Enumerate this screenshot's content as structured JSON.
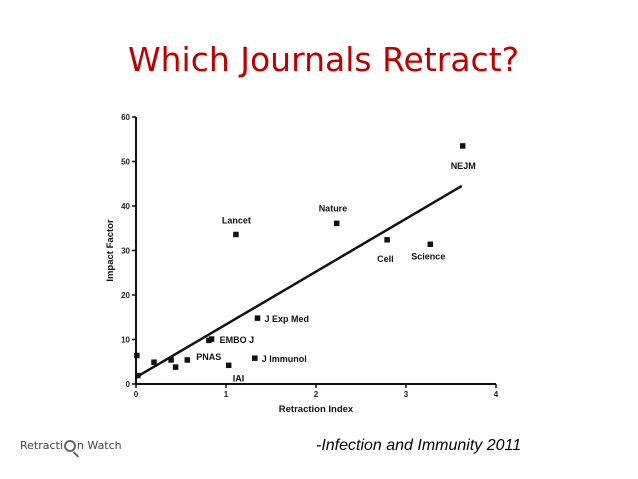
{
  "slide": {
    "title": "Which Journals Retract?",
    "source": "-Infection and Immunity 2011",
    "logo_left": "Retracti",
    "logo_right": "n Watch"
  },
  "chart_data": {
    "type": "scatter",
    "xlabel": "Retraction Index",
    "ylabel": "Impact Factor",
    "xlim": [
      0,
      4
    ],
    "ylim": [
      0,
      60
    ],
    "xticks": [
      0,
      1,
      2,
      3,
      4
    ],
    "yticks": [
      0,
      10,
      20,
      30,
      40,
      50,
      60
    ],
    "grid": false,
    "trendline": {
      "x": [
        0,
        3.62
      ],
      "y": [
        1.5,
        44.5
      ]
    },
    "points": [
      {
        "label": "NEJM",
        "x": 3.63,
        "y": 53.5
      },
      {
        "label": "Nature",
        "x": 2.23,
        "y": 36.1
      },
      {
        "label": "Lancet",
        "x": 1.11,
        "y": 33.6
      },
      {
        "label": "Cell",
        "x": 2.79,
        "y": 32.4
      },
      {
        "label": "Science",
        "x": 3.27,
        "y": 31.4
      },
      {
        "label": "J Exp Med",
        "x": 1.35,
        "y": 14.8
      },
      {
        "label": "EMBO J",
        "x": 0.84,
        "y": 10.1
      },
      {
        "label": "PNAS",
        "x": 0.57,
        "y": 5.4
      },
      {
        "label": "J Immunol",
        "x": 1.32,
        "y": 5.8
      },
      {
        "label": "IAI",
        "x": 1.03,
        "y": 4.2
      },
      {
        "label": "",
        "x": 0.01,
        "y": 6.4
      },
      {
        "label": "",
        "x": 0.02,
        "y": 1.9
      },
      {
        "label": "",
        "x": 0.2,
        "y": 4.9
      },
      {
        "label": "",
        "x": 0.39,
        "y": 5.4
      },
      {
        "label": "",
        "x": 0.44,
        "y": 3.8
      },
      {
        "label": "",
        "x": 0.81,
        "y": 9.8
      }
    ]
  }
}
